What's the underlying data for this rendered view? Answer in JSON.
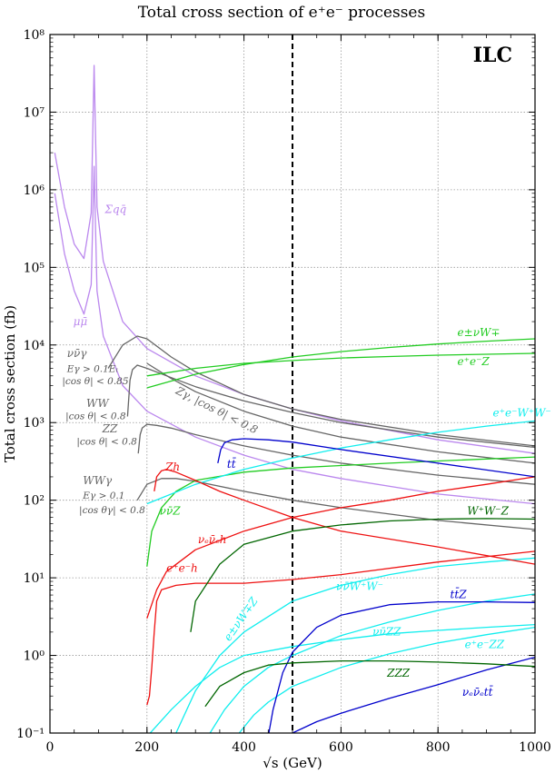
{
  "chart_data": {
    "type": "line",
    "title": "Total cross section of e⁺e⁻ processes",
    "xlabel": "√s (GeV)",
    "ylabel": "Total cross section (fb)",
    "xlim": [
      0,
      1000
    ],
    "ylim": [
      0.1,
      100000000
    ],
    "yscale": "log",
    "grid": true,
    "corner_label": "ILC",
    "reference_line_x": 500,
    "x_ticks": [
      "0",
      "200",
      "400",
      "600",
      "800",
      "1000"
    ],
    "y_ticks": [
      "10⁻¹",
      "10⁰",
      "10¹",
      "10²",
      "10³",
      "10⁴",
      "10⁵",
      "10⁶",
      "10⁷",
      "10⁸"
    ],
    "colors": {
      "lilac": "#bb88ee",
      "gray": "#666666",
      "green": "#22cc22",
      "cyan": "#11eeee",
      "blue": "#0000cc",
      "red": "#ee1111",
      "darkgreen": "#006600"
    },
    "series": [
      {
        "name": "Σqq̄",
        "color": "lilac",
        "x": [
          10,
          30,
          50,
          70,
          85,
          91,
          97,
          110,
          150,
          200,
          300,
          400,
          500,
          600,
          800,
          1000
        ],
        "y": [
          3000000,
          600000,
          200000,
          130000,
          500000,
          40000000,
          600000,
          120000,
          20000,
          9000,
          4000,
          2300,
          1500,
          1050,
          600,
          400
        ]
      },
      {
        "name": "μμ̄",
        "color": "lilac",
        "x": [
          10,
          30,
          50,
          70,
          85,
          91,
          97,
          110,
          150,
          200,
          300,
          400,
          500,
          600,
          800,
          1000
        ],
        "y": [
          900000,
          150000,
          50000,
          25000,
          60000,
          2000000,
          50000,
          13000,
          3000,
          1400,
          650,
          380,
          250,
          190,
          120,
          90
        ]
      },
      {
        "name": "νν̄γ",
        "color": "gray",
        "x": [
          120,
          150,
          180,
          200,
          250,
          300,
          400,
          500,
          600,
          800,
          1000
        ],
        "y": [
          5000,
          10000,
          13000,
          12000,
          7000,
          4500,
          2300,
          1500,
          1100,
          700,
          500
        ]
      },
      {
        "name": "Zγ",
        "color": "gray",
        "x": [
          200,
          250,
          300,
          400,
          500,
          600,
          800,
          1000
        ],
        "y": [
          5800,
          3700,
          2500,
          1400,
          900,
          650,
          420,
          300
        ]
      },
      {
        "name": "WW",
        "color": "gray",
        "x": [
          160,
          165,
          170,
          180,
          200,
          250,
          300,
          400,
          500,
          600,
          800,
          1000
        ],
        "y": [
          1200,
          3500,
          4800,
          5500,
          5000,
          3800,
          2900,
          1900,
          1350,
          1000,
          650,
          480
        ]
      },
      {
        "name": "ZZ",
        "color": "gray",
        "x": [
          182,
          186,
          190,
          200,
          220,
          250,
          300,
          400,
          500,
          600,
          800,
          1000
        ],
        "y": [
          400,
          700,
          850,
          950,
          920,
          850,
          700,
          500,
          380,
          300,
          210,
          160
        ]
      },
      {
        "name": "WWγ",
        "color": "gray",
        "x": [
          180,
          200,
          230,
          260,
          300,
          400,
          500,
          600,
          800,
          1000
        ],
        "y": [
          100,
          160,
          190,
          190,
          175,
          130,
          100,
          80,
          55,
          42
        ]
      },
      {
        "name": "e±νW∓",
        "color": "green",
        "x": [
          200,
          300,
          400,
          500,
          600,
          700,
          800,
          900,
          1000
        ],
        "y": [
          2800,
          4200,
          5600,
          7000,
          8200,
          9300,
          10300,
          11200,
          12000
        ]
      },
      {
        "name": "e⁺e⁻Z",
        "color": "green",
        "x": [
          200,
          300,
          400,
          500,
          600,
          700,
          800,
          900,
          1000
        ],
        "y": [
          4000,
          5000,
          5800,
          6300,
          6800,
          7100,
          7400,
          7600,
          7800
        ]
      },
      {
        "name": "νν̄Z",
        "color": "green",
        "x": [
          200,
          210,
          230,
          260,
          300,
          400,
          500,
          600,
          700,
          800,
          1000
        ],
        "y": [
          14,
          40,
          80,
          130,
          180,
          230,
          260,
          280,
          300,
          320,
          360
        ]
      },
      {
        "name": "e⁺e⁻W⁺W⁻",
        "color": "cyan",
        "x": [
          200,
          300,
          400,
          500,
          600,
          700,
          800,
          900,
          1000
        ],
        "y": [
          90,
          160,
          250,
          350,
          470,
          600,
          750,
          900,
          1050
        ]
      },
      {
        "name": "e±νW∓Z",
        "color": "cyan",
        "x": [
          260,
          300,
          350,
          400,
          500,
          600,
          700,
          800,
          900,
          1000
        ],
        "y": [
          0.1,
          0.35,
          1,
          2,
          5,
          8,
          11,
          14,
          16,
          18
        ]
      },
      {
        "name": "νν̄W⁺W⁻",
        "color": "cyan",
        "x": [
          330,
          360,
          400,
          450,
          500,
          600,
          700,
          800,
          900,
          1000
        ],
        "y": [
          0.1,
          0.2,
          0.4,
          0.7,
          1,
          1.8,
          2.7,
          3.8,
          5,
          6.2
        ]
      },
      {
        "name": "νν̄ZZ",
        "color": "cyan",
        "x": [
          390,
          420,
          450,
          500,
          600,
          700,
          800,
          900,
          1000
        ],
        "y": [
          0.1,
          0.17,
          0.25,
          0.4,
          0.7,
          1.05,
          1.45,
          1.85,
          2.3
        ]
      },
      {
        "name": "e⁺e⁻ZZ",
        "color": "cyan",
        "x": [
          200,
          250,
          300,
          350,
          400,
          500,
          600,
          700,
          800,
          900,
          1000
        ],
        "y": [
          0.09,
          0.2,
          0.4,
          0.7,
          1,
          1.3,
          1.6,
          1.9,
          2.1,
          2.3,
          2.5
        ]
      },
      {
        "name": "tt̄",
        "color": "blue",
        "x": [
          346,
          352,
          360,
          375,
          400,
          450,
          500,
          600,
          800,
          1000
        ],
        "y": [
          300,
          450,
          550,
          600,
          620,
          600,
          560,
          450,
          300,
          200
        ]
      },
      {
        "name": "tt̄Z",
        "color": "blue",
        "x": [
          450,
          460,
          480,
          500,
          550,
          600,
          700,
          800,
          900,
          1000
        ],
        "y": [
          0.09,
          0.2,
          0.6,
          1.1,
          2.3,
          3.3,
          4.5,
          4.9,
          4.9,
          4.8
        ]
      },
      {
        "name": "νₑν̄ₑtt̄",
        "color": "blue",
        "x": [
          500,
          550,
          600,
          700,
          800,
          900,
          1000
        ],
        "y": [
          0.1,
          0.14,
          0.18,
          0.28,
          0.42,
          0.65,
          0.95
        ]
      },
      {
        "name": "Zh",
        "color": "red",
        "x": [
          215,
          220,
          230,
          240,
          260,
          300,
          350,
          400,
          500,
          600,
          800,
          1000
        ],
        "y": [
          130,
          200,
          240,
          250,
          230,
          180,
          130,
          100,
          60,
          40,
          25,
          15
        ]
      },
      {
        "name": "νₑν̄ₑh",
        "color": "red",
        "x": [
          200,
          220,
          240,
          300,
          400,
          500,
          600,
          700,
          800,
          900,
          1000
        ],
        "y": [
          3,
          7,
          12,
          23,
          40,
          60,
          80,
          100,
          130,
          160,
          200
        ]
      },
      {
        "name": "e⁺e⁻h",
        "color": "red",
        "x": [
          200,
          205,
          210,
          215,
          220,
          230,
          260,
          300,
          400,
          500,
          600,
          800,
          1000
        ],
        "y": [
          0.23,
          0.3,
          0.7,
          2,
          5,
          7,
          8,
          8.5,
          8.5,
          9.5,
          11,
          16,
          22
        ]
      },
      {
        "name": "W⁺W⁻Z",
        "color": "darkgreen",
        "x": [
          290,
          300,
          350,
          400,
          500,
          600,
          700,
          800,
          900,
          1000
        ],
        "y": [
          2,
          5,
          15,
          27,
          40,
          48,
          54,
          57,
          58,
          57
        ]
      },
      {
        "name": "ZZZ",
        "color": "darkgreen",
        "x": [
          320,
          350,
          400,
          450,
          500,
          600,
          700,
          800,
          900,
          1000
        ],
        "y": [
          0.22,
          0.4,
          0.6,
          0.75,
          0.8,
          0.85,
          0.85,
          0.82,
          0.78,
          0.72
        ]
      }
    ],
    "labels": [
      {
        "text": "Σqq̄",
        "x": 113,
        "y": 500000,
        "color": "lilac"
      },
      {
        "text": "μμ̄",
        "x": 48,
        "y": 18000,
        "color": "lilac"
      },
      {
        "text": "νν̄γ",
        "x": 35,
        "y": 7000,
        "color": "gray"
      },
      {
        "text": "Zγ, |cos θ| < 0.8",
        "x": 258,
        "y": 2400,
        "color": "gray",
        "rotate": 27
      },
      {
        "text": "WW",
        "x": 75,
        "y": 1600,
        "color": "gray"
      },
      {
        "text": "ZZ",
        "x": 108,
        "y": 750,
        "color": "gray"
      },
      {
        "text": "WWγ",
        "x": 68,
        "y": 160,
        "color": "gray"
      },
      {
        "text": "tt̄",
        "x": 365,
        "y": 260,
        "color": "blue"
      },
      {
        "text": "Zh",
        "x": 238,
        "y": 240,
        "color": "red"
      },
      {
        "text": "νν̄Z",
        "x": 226,
        "y": 65,
        "color": "green"
      },
      {
        "text": "νₑν̄ₑh",
        "x": 305,
        "y": 28,
        "color": "red"
      },
      {
        "text": "e⁺e⁻h",
        "x": 240,
        "y": 12,
        "color": "red"
      },
      {
        "text": "e±νW∓",
        "x": 840,
        "y": 13000,
        "color": "green"
      },
      {
        "text": "e⁺e⁻Z",
        "x": 840,
        "y": 5500,
        "color": "green"
      },
      {
        "text": "e⁺e⁻W⁺W⁻",
        "x": 913,
        "y": 1200,
        "color": "cyan"
      },
      {
        "text": "W⁺W⁻Z",
        "x": 860,
        "y": 65,
        "color": "darkgreen"
      },
      {
        "text": "νν̄W⁺W⁻",
        "x": 590,
        "y": 7,
        "color": "cyan"
      },
      {
        "text": "e±νW∓Z",
        "x": 370,
        "y": 1.5,
        "color": "cyan",
        "rotate": -55
      },
      {
        "text": "tt̄Z",
        "x": 825,
        "y": 5.5,
        "color": "blue"
      },
      {
        "text": "νν̄ZZ",
        "x": 665,
        "y": 1.8,
        "color": "cyan"
      },
      {
        "text": "e⁺e⁻ZZ",
        "x": 855,
        "y": 1.25,
        "color": "cyan"
      },
      {
        "text": "ZZZ",
        "x": 695,
        "y": 0.53,
        "color": "darkgreen"
      },
      {
        "text": "νₑν̄ₑtt̄",
        "x": 850,
        "y": 0.3,
        "color": "blue"
      }
    ],
    "annotations": [
      {
        "text": "Eγ > 0.1Eₗ",
        "x": 35,
        "y": 4500
      },
      {
        "text": "|cos θ| < 0.85",
        "x": 25,
        "y": 3100
      },
      {
        "text": "|cos θ| < 0.8",
        "x": 32,
        "y": 1100
      },
      {
        "text": "|cos θ| < 0.8",
        "x": 55,
        "y": 520
      },
      {
        "text": "Eγ > 0.1",
        "x": 68,
        "y": 105
      },
      {
        "text": "|cos θγ| < 0.8",
        "x": 60,
        "y": 68
      }
    ]
  }
}
